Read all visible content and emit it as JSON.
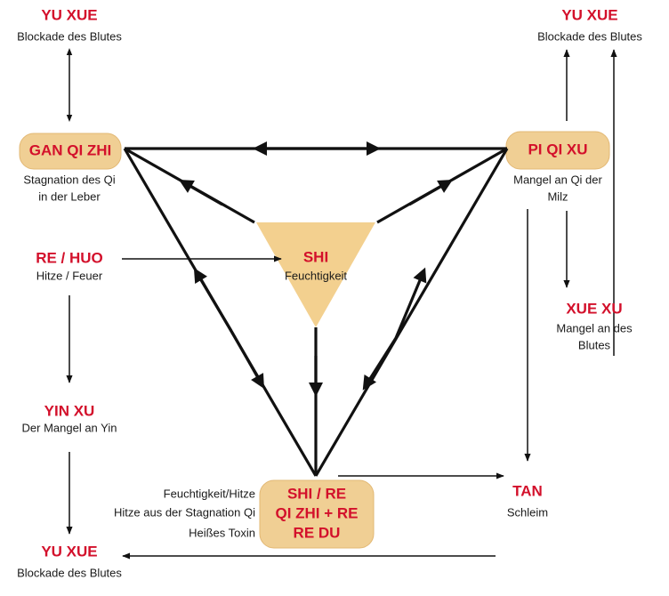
{
  "nodes": [
    {
      "title": "YU XUE",
      "lines": [
        "Blockade des Blutes"
      ]
    },
    {
      "title": "YU XUE",
      "lines": [
        "Blockade des Blutes"
      ]
    },
    {
      "title": "GAN QI ZHI",
      "lines": [
        "Stagnation des Qi",
        "in der Leber"
      ]
    },
    {
      "title": "PI QI XU",
      "lines": [
        "Mangel an Qi der",
        "Milz"
      ]
    },
    {
      "title": "SHI",
      "lines": [
        "Feuchtigkeit"
      ]
    },
    {
      "title": "RE / HUO",
      "lines": [
        "Hitze / Feuer"
      ]
    },
    {
      "title": "XUE XU",
      "lines": [
        "Mangel an des",
        "Blutes"
      ]
    },
    {
      "title": "YIN XU",
      "lines": [
        "Der Mangel an Yin"
      ]
    },
    {
      "title": "TAN",
      "lines": [
        "Schleim"
      ]
    },
    {
      "titles": [
        "SHI / RE",
        "QI ZHI + RE",
        "RE DU"
      ],
      "notes": [
        "Feuchtigkeit/Hitze",
        "Hitze aus der Stagnation Qi",
        "Heißes Toxin"
      ]
    },
    {
      "title": "YU XUE",
      "lines": [
        "Blockade des Blutes"
      ]
    }
  ]
}
